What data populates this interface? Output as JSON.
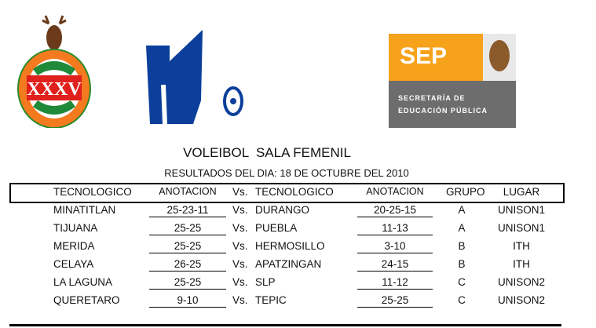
{
  "logos": {
    "left": "Instituto Tecnologico de Hermosillo XXXV Aniversario 1975 2010",
    "sep_abbr": "SEP",
    "sep_line1": "SECRETARÍA DE",
    "sep_line2": "EDUCACIÓN PÚBLICA"
  },
  "colors": {
    "orange": "#f7a21b",
    "gray": "#6d6d6d",
    "blue": "#0b3f9b",
    "red": "#e0201c",
    "green": "#1e8a3a"
  },
  "title": "VOLEIBOL  SALA FEMENIL",
  "subtitle": "RESULTADOS DEL DIA: 18 DE OCTUBRE DEL 2010",
  "header": {
    "team1": "TECNOLOGICO",
    "score1": "ANOTACION",
    "vs": "Vs.",
    "team2": "TECNOLOGICO",
    "score2": "ANOTACION",
    "group": "GRUPO",
    "venue": "LUGAR"
  },
  "rows": [
    {
      "team1": "MINATITLAN",
      "score1": "25-23-11",
      "vs": "Vs.",
      "team2": "DURANGO",
      "score2": "20-25-15",
      "group": "A",
      "venue": "UNISON1"
    },
    {
      "team1": "TIJUANA",
      "score1": "25-25",
      "vs": "Vs.",
      "team2": "PUEBLA",
      "score2": "11-13",
      "group": "A",
      "venue": "UNISON1"
    },
    {
      "team1": "MERIDA",
      "score1": "25-25",
      "vs": "Vs.",
      "team2": "HERMOSILLO",
      "score2": "3-10",
      "group": "B",
      "venue": "ITH"
    },
    {
      "team1": "CELAYA",
      "score1": "26-25",
      "vs": "Vs.",
      "team2": "APATZINGAN",
      "score2": "24-15",
      "group": "B",
      "venue": "ITH"
    },
    {
      "team1": "LA LAGUNA",
      "score1": "25-25",
      "vs": "Vs.",
      "team2": "SLP",
      "score2": "11-12",
      "group": "C",
      "venue": "UNISON2"
    },
    {
      "team1": "QUERETARO",
      "score1": "9-10",
      "vs": "Vs.",
      "team2": "TEPIC",
      "score2": "25-25",
      "group": "C",
      "venue": "UNISON2"
    }
  ]
}
